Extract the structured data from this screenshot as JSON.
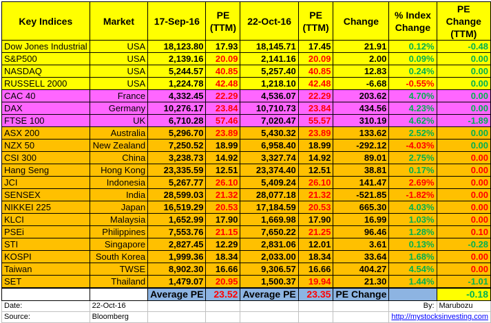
{
  "headers": {
    "key_indices": "Key Indices",
    "market": "Market",
    "date1": "17-Sep-16",
    "pe1": "PE (TTM)",
    "date2": "22-Oct-16",
    "pe2": "PE (TTM)",
    "change": "Change",
    "pct_change": "% Index Change",
    "pe_change": "PE Change (TTM)"
  },
  "rows": [
    {
      "group": "us",
      "name": "Dow Jones Industrial",
      "market": "USA",
      "v1": "18,123.80",
      "pe1": "17.93",
      "pe1_color": "black",
      "v2": "18,145.71",
      "pe2": "17.45",
      "pe2_color": "black",
      "change": "21.91",
      "change_color": "black",
      "pct": "0.12%",
      "pct_color": "green",
      "pec": "-0.48",
      "pec_color": "green"
    },
    {
      "group": "us",
      "name": "S&P500",
      "market": "USA",
      "v1": "2,139.16",
      "pe1": "20.09",
      "pe1_color": "red",
      "v2": "2,141.16",
      "pe2": "20.09",
      "pe2_color": "red",
      "change": "2.00",
      "change_color": "black",
      "pct": "0.09%",
      "pct_color": "green",
      "pec": "0.00",
      "pec_color": "green"
    },
    {
      "group": "us",
      "name": "NASDAQ",
      "market": "USA",
      "v1": "5,244.57",
      "pe1": "40.85",
      "pe1_color": "red",
      "v2": "5,257.40",
      "pe2": "40.85",
      "pe2_color": "red",
      "change": "12.83",
      "change_color": "black",
      "pct": "0.24%",
      "pct_color": "green",
      "pec": "0.00",
      "pec_color": "green"
    },
    {
      "group": "us",
      "name": "RUSSELL 2000",
      "market": "USA",
      "v1": "1,224.78",
      "pe1": "42.48",
      "pe1_color": "red",
      "v2": "1,218.10",
      "pe2": "42.48",
      "pe2_color": "red",
      "change": "-6.68",
      "change_color": "black",
      "pct": "-0.55%",
      "pct_color": "red",
      "pec": "0.00",
      "pec_color": "green"
    },
    {
      "group": "eu",
      "name": "CAC 40",
      "market": "France",
      "v1": "4,332.45",
      "pe1": "22.29",
      "pe1_color": "red",
      "v2": "4,536.07",
      "pe2": "22.29",
      "pe2_color": "red",
      "change": "203.62",
      "change_color": "black",
      "pct": "4.70%",
      "pct_color": "green",
      "pec": "0.00",
      "pec_color": "green"
    },
    {
      "group": "eu",
      "name": "DAX",
      "market": "Germany",
      "v1": "10,276.17",
      "pe1": "23.84",
      "pe1_color": "red",
      "v2": "10,710.73",
      "pe2": "23.84",
      "pe2_color": "red",
      "change": "434.56",
      "change_color": "black",
      "pct": "4.23%",
      "pct_color": "green",
      "pec": "0.00",
      "pec_color": "green"
    },
    {
      "group": "eu",
      "name": "FTSE 100",
      "market": "UK",
      "v1": "6,710.28",
      "pe1": "57.46",
      "pe1_color": "red",
      "v2": "7,020.47",
      "pe2": "55.57",
      "pe2_color": "red",
      "change": "310.19",
      "change_color": "black",
      "pct": "4.62%",
      "pct_color": "green",
      "pec": "-1.89",
      "pec_color": "green"
    },
    {
      "group": "as",
      "name": "ASX 200",
      "market": "Australia",
      "v1": "5,296.70",
      "pe1": "23.89",
      "pe1_color": "red",
      "v2": "5,430.32",
      "pe2": "23.89",
      "pe2_color": "red",
      "change": "133.62",
      "change_color": "black",
      "pct": "2.52%",
      "pct_color": "green",
      "pec": "0.00",
      "pec_color": "green"
    },
    {
      "group": "as",
      "name": "NZX 50",
      "market": "New Zealand",
      "v1": "7,250.52",
      "pe1": "18.99",
      "pe1_color": "black",
      "v2": "6,958.40",
      "pe2": "18.99",
      "pe2_color": "black",
      "change": "-292.12",
      "change_color": "black",
      "pct": "-4.03%",
      "pct_color": "red",
      "pec": "0.00",
      "pec_color": "green"
    },
    {
      "group": "as",
      "name": "CSI 300",
      "market": "China",
      "v1": "3,238.73",
      "pe1": "14.92",
      "pe1_color": "black",
      "v2": "3,327.74",
      "pe2": "14.92",
      "pe2_color": "black",
      "change": "89.01",
      "change_color": "black",
      "pct": "2.75%",
      "pct_color": "green",
      "pec": "0.00",
      "pec_color": "red"
    },
    {
      "group": "as",
      "name": "Hang Seng",
      "market": "Hong Kong",
      "v1": "23,335.59",
      "pe1": "12.51",
      "pe1_color": "black",
      "v2": "23,374.40",
      "pe2": "12.51",
      "pe2_color": "black",
      "change": "38.81",
      "change_color": "black",
      "pct": "0.17%",
      "pct_color": "green",
      "pec": "0.00",
      "pec_color": "red"
    },
    {
      "group": "as",
      "name": "JCI",
      "market": "Indonesia",
      "v1": "5,267.77",
      "pe1": "26.10",
      "pe1_color": "red",
      "v2": "5,409.24",
      "pe2": "26.10",
      "pe2_color": "red",
      "change": "141.47",
      "change_color": "black",
      "pct": "2.69%",
      "pct_color": "red",
      "pec": "0.00",
      "pec_color": "red"
    },
    {
      "group": "as",
      "name": "SENSEX",
      "market": "India",
      "v1": "28,599.03",
      "pe1": "21.32",
      "pe1_color": "red",
      "v2": "28,077.18",
      "pe2": "21.32",
      "pe2_color": "red",
      "change": "-521.85",
      "change_color": "black",
      "pct": "-1.82%",
      "pct_color": "red",
      "pec": "0.00",
      "pec_color": "red"
    },
    {
      "group": "as",
      "name": "NIKKEI 225",
      "market": "Japan",
      "v1": "16,519.29",
      "pe1": "20.53",
      "pe1_color": "red",
      "v2": "17,184.59",
      "pe2": "20.53",
      "pe2_color": "red",
      "change": "665.30",
      "change_color": "black",
      "pct": "4.03%",
      "pct_color": "green",
      "pec": "0.00",
      "pec_color": "red"
    },
    {
      "group": "as",
      "name": "KLCI",
      "market": "Malaysia",
      "v1": "1,652.99",
      "pe1": "17.90",
      "pe1_color": "black",
      "v2": "1,669.98",
      "pe2": "17.90",
      "pe2_color": "black",
      "change": "16.99",
      "change_color": "black",
      "pct": "1.03%",
      "pct_color": "green",
      "pec": "0.00",
      "pec_color": "red"
    },
    {
      "group": "as",
      "name": "PSEi",
      "market": "Philippines",
      "v1": "7,553.76",
      "pe1": "21.15",
      "pe1_color": "red",
      "v2": "7,650.22",
      "pe2": "21.25",
      "pe2_color": "red",
      "change": "96.46",
      "change_color": "black",
      "pct": "1.28%",
      "pct_color": "green",
      "pec": "0.10",
      "pec_color": "red"
    },
    {
      "group": "as",
      "name": "STI",
      "market": "Singapore",
      "v1": "2,827.45",
      "pe1": "12.29",
      "pe1_color": "black",
      "v2": "2,831.06",
      "pe2": "12.01",
      "pe2_color": "black",
      "change": "3.61",
      "change_color": "black",
      "pct": "0.13%",
      "pct_color": "green",
      "pec": "-0.28",
      "pec_color": "green"
    },
    {
      "group": "as",
      "name": "KOSPI",
      "market": "South Korea",
      "v1": "1,999.36",
      "pe1": "18.34",
      "pe1_color": "black",
      "v2": "2,033.00",
      "pe2": "18.34",
      "pe2_color": "black",
      "change": "33.64",
      "change_color": "black",
      "pct": "1.68%",
      "pct_color": "green",
      "pec": "0.00",
      "pec_color": "red"
    },
    {
      "group": "as",
      "name": "Taiwan",
      "market": "TWSE",
      "v1": "8,902.30",
      "pe1": "16.66",
      "pe1_color": "black",
      "v2": "9,306.57",
      "pe2": "16.66",
      "pe2_color": "black",
      "change": "404.27",
      "change_color": "black",
      "pct": "4.54%",
      "pct_color": "green",
      "pec": "0.00",
      "pec_color": "red"
    },
    {
      "group": "as",
      "name": "SET",
      "market": "Thailand",
      "v1": "1,479.07",
      "pe1": "20.95",
      "pe1_color": "red",
      "v2": "1,500.37",
      "pe2": "19.94",
      "pe2_color": "red",
      "change": "21.30",
      "change_color": "black",
      "pct": "1.44%",
      "pct_color": "green",
      "pec": "-1.01",
      "pec_color": "green"
    }
  ],
  "summary": {
    "avg_pe_label_1": "Average PE",
    "avg_pe_1": "23.52",
    "avg_pe_label_2": "Average PE",
    "avg_pe_2": "23.35",
    "pe_change_label": "PE Change",
    "pe_change_value": "-0.18"
  },
  "footer": {
    "date_label": "Date:",
    "date_value": "22-Oct-16",
    "by_label": "By:",
    "by_value": "Marubozu",
    "source_label": "Source:",
    "source_value": "Bloomberg",
    "link": "http://mystocksinvesting.com"
  },
  "colors": {
    "usa_group": "#ffff00",
    "europe_group": "#ff66ff",
    "asia_group": "#ffc000",
    "summary_blue": "#8db4e2",
    "positive": "#00b050",
    "negative": "#ff0000"
  }
}
